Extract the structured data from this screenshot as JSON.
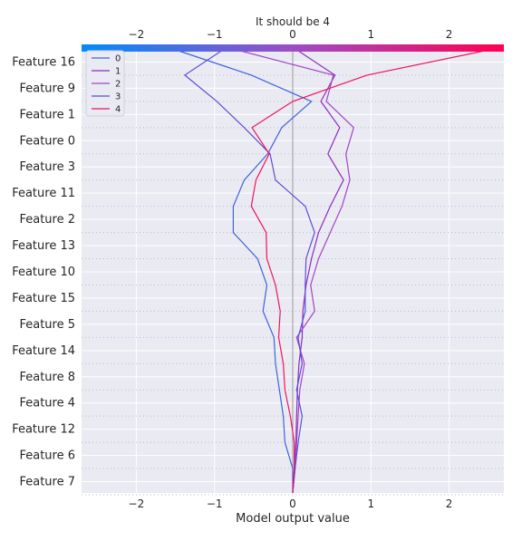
{
  "chart_data": {
    "type": "line",
    "subtype": "decision-plot",
    "title": "It should be 4",
    "xlabel": "Model output value",
    "xlim": [
      -2.7,
      2.7
    ],
    "x_ticks": [
      -2,
      -1,
      0,
      1,
      2
    ],
    "x_tick_labels": [
      "−2",
      "−1",
      "0",
      "1",
      "2"
    ],
    "base_value": 0,
    "features": [
      "Feature 16",
      "Feature 9",
      "Feature 1",
      "Feature 0",
      "Feature 3",
      "Feature 11",
      "Feature 2",
      "Feature 13",
      "Feature 10",
      "Feature 15",
      "Feature 5",
      "Feature 14",
      "Feature 8",
      "Feature 4",
      "Feature 12",
      "Feature 6",
      "Feature 7"
    ],
    "grid": true,
    "legend_position": "top-left",
    "colorbar": {
      "from": "#008bfb",
      "mid": "#9d4dc5",
      "to": "#ff0052"
    },
    "series": [
      {
        "name": "0",
        "color": "#3e63dd",
        "values": [
          -1.6,
          -0.53,
          0.24,
          -0.14,
          -0.32,
          -0.62,
          -0.76,
          -0.76,
          -0.45,
          -0.33,
          -0.38,
          -0.24,
          -0.22,
          -0.17,
          -0.12,
          -0.1,
          0.0,
          0.0
        ]
      },
      {
        "name": "1",
        "color": "#8e2bbc",
        "values": 0,
        "values_list": [
          0.0,
          0.54,
          0.36,
          0.6,
          0.45,
          0.65,
          0.48,
          0.33,
          0.24,
          0.17,
          0.13,
          0.12,
          0.08,
          0.06,
          0.05,
          0.04,
          0.02,
          0.0
        ]
      },
      {
        "name": "2",
        "color": "#a343c8",
        "values_list": [
          -0.85,
          0.52,
          0.43,
          0.78,
          0.68,
          0.73,
          0.63,
          0.48,
          0.33,
          0.23,
          0.28,
          0.05,
          0.15,
          0.09,
          0.07,
          0.05,
          0.03,
          0.0
        ]
      },
      {
        "name": "3",
        "color": "#5c4ed6",
        "values_list": [
          -0.84,
          -1.38,
          -0.97,
          -0.62,
          -0.29,
          -0.22,
          0.16,
          0.28,
          0.17,
          0.16,
          0.16,
          0.07,
          0.12,
          0.05,
          0.12,
          0.07,
          0.03,
          0.0
        ]
      },
      {
        "name": "4",
        "color": "#f0135c",
        "values_list": [
          2.68,
          0.95,
          0.0,
          -0.52,
          -0.3,
          -0.47,
          -0.53,
          -0.34,
          -0.33,
          -0.22,
          -0.16,
          -0.18,
          -0.12,
          -0.1,
          -0.03,
          0.02,
          0.02,
          0.0
        ]
      }
    ]
  }
}
